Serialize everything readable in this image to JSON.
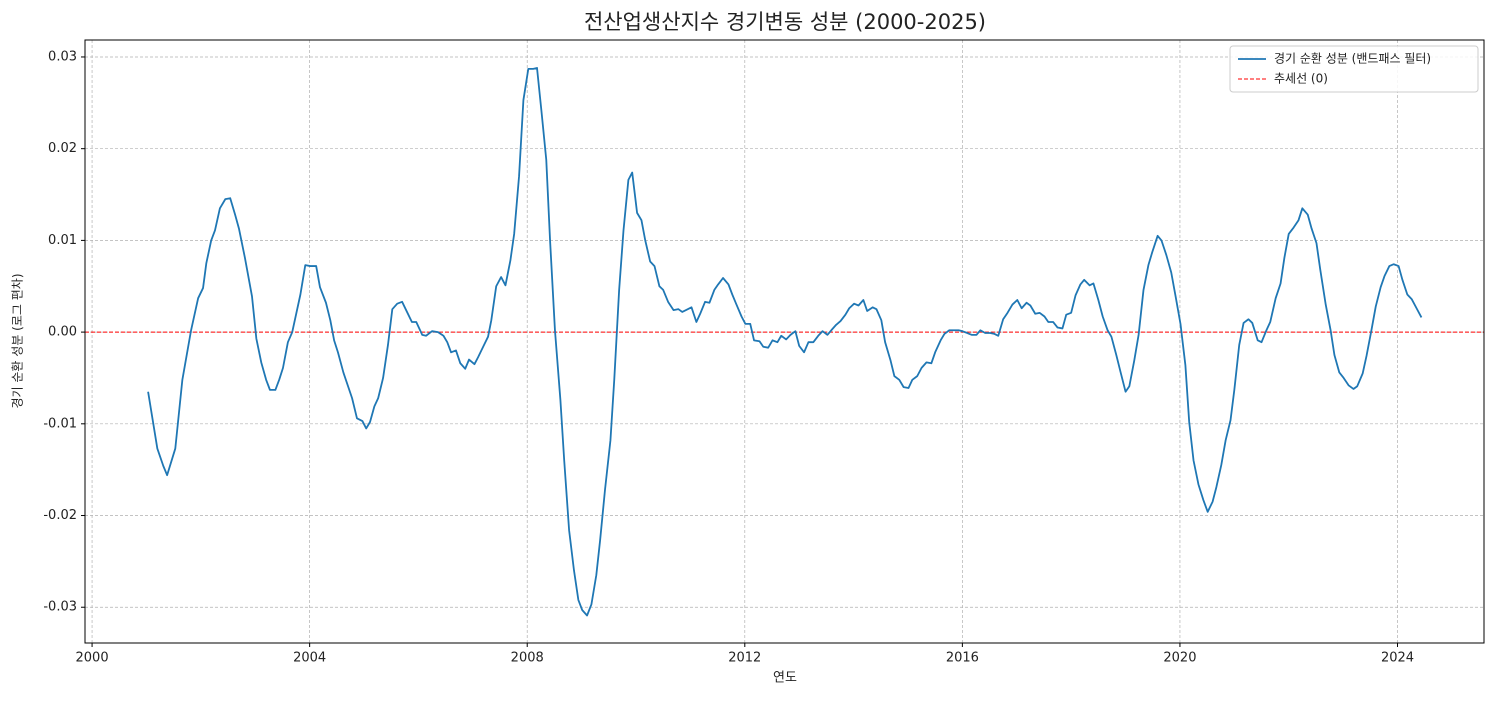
{
  "chart_data": {
    "type": "line",
    "title": "전산업생산지수 경기변동 성분 (2000-2025)",
    "x_label": "연도",
    "y_label": "경기 순환 성분 (로그 편차)",
    "xlim": [
      1999.87,
      2025.59
    ],
    "ylim": [
      -0.0339,
      0.03185
    ],
    "xticks": [
      2000,
      2004,
      2008,
      2012,
      2016,
      2020,
      2024
    ],
    "yticks": [
      -0.03,
      -0.02,
      -0.01,
      {
        "value": 0,
        "label": "0.00"
      },
      0.01,
      0.02,
      0.03
    ],
    "grid": true,
    "legend": "upper right",
    "x": [
      2001.03,
      2001.2,
      2001.31,
      2001.38,
      2001.53,
      2001.66,
      2001.82,
      2001.95,
      2002.04,
      2002.1,
      2002.19,
      2002.26,
      2002.35,
      2002.45,
      2002.54,
      2002.63,
      2002.7,
      2002.81,
      2002.94,
      2003.02,
      2003.11,
      2003.2,
      2003.27,
      2003.37,
      2003.44,
      2003.51,
      2003.6,
      2003.68,
      2003.83,
      2003.92,
      2004.01,
      2004.12,
      2004.19,
      2004.3,
      2004.38,
      2004.45,
      2004.52,
      2004.62,
      2004.78,
      2004.87,
      2004.97,
      2005.04,
      2005.11,
      2005.19,
      2005.26,
      2005.35,
      2005.44,
      2005.52,
      2005.61,
      2005.7,
      2005.79,
      2005.88,
      2005.96,
      2006.07,
      2006.14,
      2006.25,
      2006.36,
      2006.46,
      2006.53,
      2006.6,
      2006.69,
      2006.77,
      2006.86,
      2006.93,
      2007.03,
      2007.1,
      2007.19,
      2007.28,
      2007.34,
      2007.43,
      2007.52,
      2007.6,
      2007.69,
      2007.76,
      2007.85,
      2007.93,
      2008.02,
      2008.11,
      2008.18,
      2008.26,
      2008.35,
      2008.42,
      2008.51,
      2008.61,
      2008.68,
      2008.77,
      2008.86,
      2008.94,
      2009.01,
      2009.1,
      2009.18,
      2009.27,
      2009.34,
      2009.43,
      2009.53,
      2009.6,
      2009.69,
      2009.77,
      2009.86,
      2009.93,
      2010.02,
      2010.1,
      2010.17,
      2010.26,
      2010.34,
      2010.43,
      2010.5,
      2010.59,
      2010.69,
      2010.78,
      2010.85,
      2010.92,
      2011.02,
      2011.11,
      2011.18,
      2011.27,
      2011.35,
      2011.44,
      2011.51,
      2011.6,
      2011.7,
      2011.77,
      2011.84,
      2011.94,
      2012.01,
      2012.1,
      2012.17,
      2012.27,
      2012.34,
      2012.43,
      2012.51,
      2012.6,
      2012.67,
      2012.76,
      2012.84,
      2012.93,
      2013.0,
      2013.09,
      2013.17,
      2013.26,
      2013.35,
      2013.43,
      2013.52,
      2013.59,
      2013.68,
      2013.76,
      2013.85,
      2013.92,
      2014.01,
      2014.09,
      2014.18,
      2014.25,
      2014.35,
      2014.42,
      2014.51,
      2014.58,
      2014.68,
      2014.75,
      2014.84,
      2014.92,
      2015.01,
      2015.08,
      2015.17,
      2015.25,
      2015.34,
      2015.43,
      2015.5,
      2015.6,
      2015.67,
      2015.76,
      2015.83,
      2015.93,
      2016.0,
      2016.09,
      2016.17,
      2016.26,
      2016.33,
      2016.42,
      2016.51,
      2016.59,
      2016.66,
      2016.75,
      2016.83,
      2016.92,
      2017.01,
      2017.09,
      2017.18,
      2017.25,
      2017.34,
      2017.42,
      2017.51,
      2017.58,
      2017.67,
      2017.75,
      2017.84,
      2017.91,
      2018.0,
      2018.08,
      2018.17,
      2018.24,
      2018.34,
      2018.41,
      2018.5,
      2018.58,
      2018.67,
      2018.74,
      2018.83,
      2018.91,
      2019.0,
      2019.07,
      2019.16,
      2019.24,
      2019.33,
      2019.42,
      2019.49,
      2019.59,
      2019.66,
      2019.75,
      2019.84,
      2019.92,
      2020.01,
      2020.1,
      2020.17,
      2020.25,
      2020.34,
      2020.43,
      2020.51,
      2020.6,
      2020.67,
      2020.76,
      2020.84,
      2020.93,
      2021.0,
      2021.09,
      2021.17,
      2021.26,
      2021.33,
      2021.43,
      2021.5,
      2021.59,
      2021.66,
      2021.76,
      2021.85,
      2021.92,
      2022.0,
      2022.09,
      2022.18,
      2022.25,
      2022.35,
      2022.42,
      2022.51,
      2022.58,
      2022.68,
      2022.77,
      2022.84,
      2022.93,
      2023.01,
      2023.1,
      2023.19,
      2023.26,
      2023.36,
      2023.43,
      2023.52,
      2023.6,
      2023.69,
      2023.76,
      2023.85,
      2023.93,
      2024.02,
      2024.09,
      2024.18,
      2024.26,
      2024.35,
      2024.44
    ],
    "series": [
      {
        "name": "경기 순환 성분 (밴드패스 필터)",
        "color": "#1f77b4",
        "values": [
          -0.0065,
          -0.0127,
          -0.0146,
          -0.0156,
          -0.0127,
          -0.0052,
          0.0002,
          0.0037,
          0.0048,
          0.0075,
          0.01,
          0.0111,
          0.0135,
          0.0145,
          0.0146,
          0.0128,
          0.0113,
          0.0081,
          0.0039,
          -0.0007,
          -0.0033,
          -0.0052,
          -0.0063,
          -0.0063,
          -0.0052,
          -0.0039,
          -0.0011,
          0.0,
          0.0041,
          0.0073,
          0.0072,
          0.0072,
          0.0049,
          0.0032,
          0.0013,
          -0.0009,
          -0.0022,
          -0.0044,
          -0.0072,
          -0.0094,
          -0.0097,
          -0.0105,
          -0.0098,
          -0.0081,
          -0.0072,
          -0.005,
          -0.0014,
          0.0025,
          0.0031,
          0.0033,
          0.0022,
          0.0011,
          0.0011,
          -0.0003,
          -0.0004,
          0.0001,
          0.0,
          -0.0004,
          -0.0011,
          -0.0022,
          -0.002,
          -0.0034,
          -0.004,
          -0.003,
          -0.0035,
          -0.0027,
          -0.0016,
          -0.0005,
          0.0013,
          0.005,
          0.006,
          0.0051,
          0.0078,
          0.0107,
          0.017,
          0.0253,
          0.0287,
          0.0287,
          0.0288,
          0.0242,
          0.0188,
          0.01,
          0.0002,
          -0.0074,
          -0.014,
          -0.0216,
          -0.026,
          -0.0292,
          -0.0303,
          -0.0309,
          -0.0297,
          -0.0265,
          -0.0227,
          -0.0172,
          -0.0118,
          -0.0052,
          0.0046,
          0.0111,
          0.0166,
          0.0174,
          0.013,
          0.0122,
          0.01,
          0.0077,
          0.0072,
          0.005,
          0.0046,
          0.0033,
          0.0024,
          0.0025,
          0.0022,
          0.0024,
          0.0027,
          0.0011,
          0.002,
          0.0033,
          0.0032,
          0.0046,
          0.0052,
          0.0059,
          0.0052,
          0.0041,
          0.0031,
          0.0017,
          0.0009,
          0.0009,
          -0.0009,
          -0.001,
          -0.0016,
          -0.0017,
          -0.0009,
          -0.0011,
          -0.0004,
          -0.0008,
          -0.0003,
          0.0001,
          -0.0015,
          -0.0022,
          -0.0011,
          -0.0011,
          -0.0004,
          0.0001,
          -0.0003,
          0.0002,
          0.0008,
          0.0012,
          0.0019,
          0.0026,
          0.0031,
          0.0029,
          0.0035,
          0.0023,
          0.0027,
          0.0025,
          0.0013,
          -0.0011,
          -0.0031,
          -0.0048,
          -0.0052,
          -0.006,
          -0.0061,
          -0.0052,
          -0.0048,
          -0.0039,
          -0.0033,
          -0.0034,
          -0.0022,
          -0.0009,
          -0.0002,
          0.0002,
          0.0002,
          0.0002,
          0.0001,
          -0.0001,
          -0.0003,
          -0.0003,
          0.0002,
          -0.0001,
          -0.0001,
          -0.0002,
          -0.0004,
          0.0014,
          0.0021,
          0.003,
          0.0035,
          0.0026,
          0.0032,
          0.0029,
          0.002,
          0.0021,
          0.0017,
          0.0011,
          0.0011,
          0.0005,
          0.0004,
          0.0019,
          0.0021,
          0.004,
          0.0052,
          0.0057,
          0.0051,
          0.0053,
          0.0035,
          0.0017,
          0.0002,
          -0.0005,
          -0.0025,
          -0.0044,
          -0.0065,
          -0.0059,
          -0.0031,
          -0.0003,
          0.0046,
          0.0073,
          0.0087,
          0.0105,
          0.01,
          0.0084,
          0.0065,
          0.0039,
          0.0009,
          -0.0036,
          -0.0098,
          -0.014,
          -0.0166,
          -0.0183,
          -0.0196,
          -0.0185,
          -0.0169,
          -0.0145,
          -0.0118,
          -0.0096,
          -0.0063,
          -0.0014,
          0.001,
          0.0014,
          0.001,
          -0.0009,
          -0.0011,
          0.0002,
          0.0011,
          0.0037,
          0.0053,
          0.0081,
          0.0107,
          0.0114,
          0.0122,
          0.0135,
          0.0128,
          0.0113,
          0.0097,
          0.0068,
          0.003,
          0.0002,
          -0.0025,
          -0.0044,
          -0.005,
          -0.0058,
          -0.0062,
          -0.0059,
          -0.0045,
          -0.0026,
          0.0002,
          0.0028,
          0.0049,
          0.0061,
          0.0072,
          0.0074,
          0.0072,
          0.0057,
          0.0041,
          0.0036,
          0.0026,
          0.0016
        ]
      }
    ],
    "hline": {
      "name": "추세선 (0)",
      "value": 0,
      "color": "#ff0000",
      "style": "dashed"
    }
  }
}
